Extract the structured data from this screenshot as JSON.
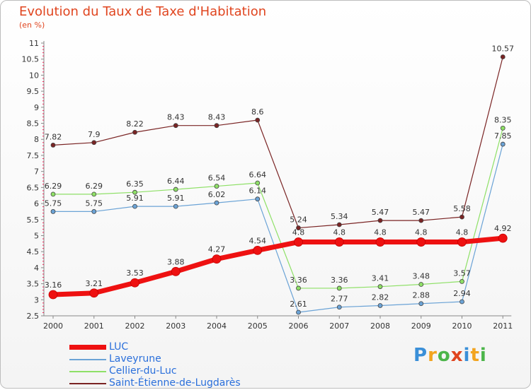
{
  "title": "Evolution du Taux de Taxe d'Habitation",
  "subtitle": "(en %)",
  "logo": "Proxiti",
  "chart_data": {
    "type": "line",
    "title": "Evolution du Taux de Taxe d'Habitation",
    "ylabel": "(en %)",
    "x": [
      "2000",
      "2001",
      "2002",
      "2003",
      "2004",
      "2005",
      "2006",
      "2007",
      "2008",
      "2009",
      "2010",
      "2011"
    ],
    "ylim": [
      2.5,
      11
    ],
    "yticks": [
      "2.5",
      "3",
      "3.5",
      "4",
      "4.5",
      "5",
      "5.5",
      "6",
      "6.5",
      "7",
      "7.5",
      "8",
      "8.5",
      "9",
      "9.5",
      "10",
      "10.5",
      "11"
    ],
    "grid": false,
    "legend_position": "bottom-left",
    "series": [
      {
        "name": "LUC",
        "color": "#ee1111",
        "values": [
          3.16,
          3.21,
          3.53,
          3.88,
          4.27,
          4.54,
          4.8,
          4.8,
          4.8,
          4.8,
          4.8,
          4.92
        ],
        "labels": [
          "3.16",
          "3.21",
          "3.53",
          "3.88",
          "4.27",
          "4.54",
          "4.8",
          "4.8",
          "4.8",
          "4.8",
          "4.8",
          "4.92"
        ]
      },
      {
        "name": "Laveyrune",
        "color": "#6ba3d6",
        "values": [
          5.75,
          5.75,
          5.91,
          5.91,
          6.02,
          6.14,
          2.61,
          2.77,
          2.82,
          2.88,
          2.94,
          7.85
        ],
        "labels": [
          "5.75",
          "5.75",
          "5.91",
          "5.91",
          "6.02",
          "6.14",
          "2.61",
          "2.77",
          "2.82",
          "2.88",
          "2.94",
          "7.85"
        ]
      },
      {
        "name": "Cellier-du-Luc",
        "color": "#8ee066",
        "values": [
          6.29,
          6.29,
          6.35,
          6.44,
          6.54,
          6.64,
          3.36,
          3.36,
          3.41,
          3.48,
          3.57,
          8.35
        ],
        "labels": [
          "6.29",
          "6.29",
          "6.35",
          "6.44",
          "6.54",
          "6.64",
          "3.36",
          "3.36",
          "3.41",
          "3.48",
          "3.57",
          "8.35"
        ]
      },
      {
        "name": "Saint-Étienne-de-Lugdarès",
        "color": "#7a2424",
        "values": [
          7.82,
          7.9,
          8.22,
          8.43,
          8.43,
          8.6,
          5.24,
          5.34,
          5.47,
          5.47,
          5.58,
          10.57
        ],
        "labels": [
          "7.82",
          "7.9",
          "8.22",
          "8.43",
          "8.43",
          "8.6",
          "5.24",
          "5.34",
          "5.47",
          "5.47",
          "5.58",
          "10.57"
        ]
      }
    ]
  }
}
